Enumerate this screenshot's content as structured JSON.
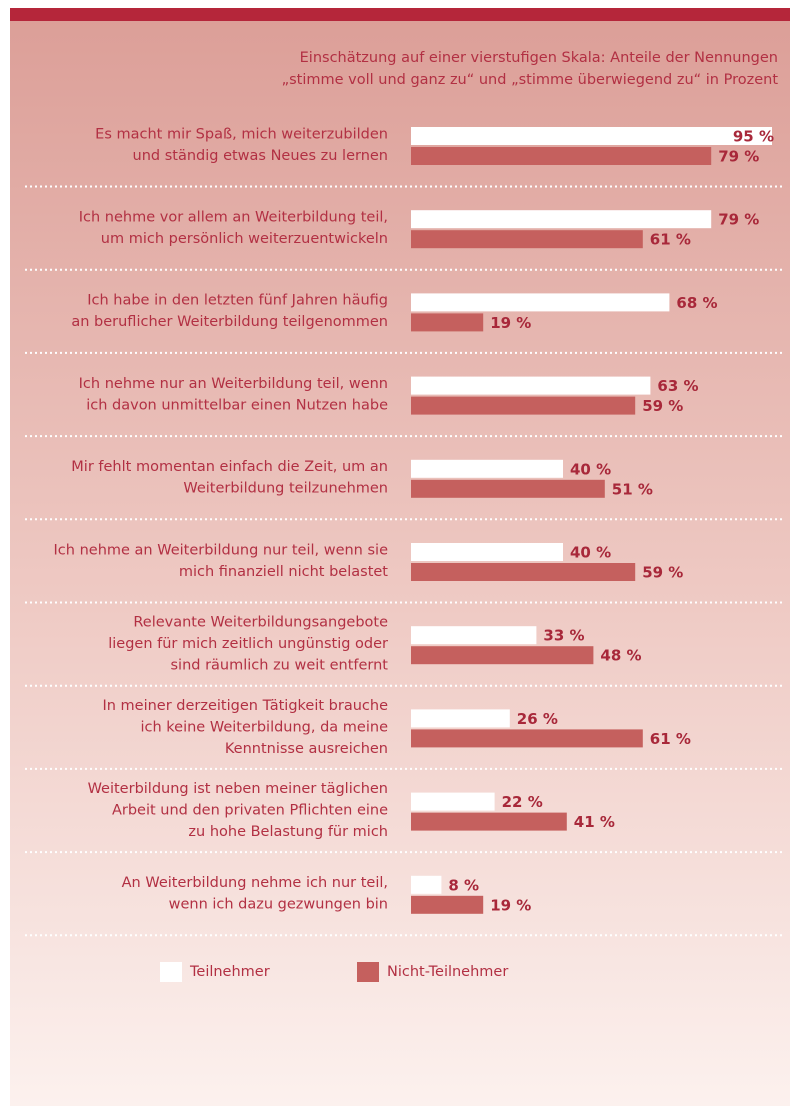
{
  "chart_data": {
    "type": "bar",
    "orientation": "horizontal",
    "subtitle": [
      "Einschätzung auf einer vierstufigen Skala: Anteile der Nennungen",
      "„stimme voll und ganz zu“ und „stimme überwiegend zu“ in Prozent"
    ],
    "categories": [
      [
        "Es macht mir Spaß, mich weiterzubilden",
        "und ständig etwas Neues zu lernen"
      ],
      [
        "Ich nehme vor allem an Weiterbildung teil,",
        "um mich persönlich weiterzuentwickeln"
      ],
      [
        "Ich habe in den letzten fünf Jahren häufig",
        "an beruflicher Weiterbildung teilgenommen"
      ],
      [
        "Ich nehme nur an Weiterbildung teil, wenn",
        "ich davon unmittelbar einen Nutzen habe"
      ],
      [
        "Mir fehlt momentan einfach die Zeit, um an",
        "Weiterbildung teilzunehmen"
      ],
      [
        "Ich nehme an Weiterbildung nur teil, wenn sie",
        "mich finanziell nicht belastet"
      ],
      [
        "Relevante Weiterbildungsangebote",
        "liegen für mich zeitlich ungünstig oder",
        "sind räumlich zu weit entfernt"
      ],
      [
        "In meiner derzeitigen Tätigkeit brauche",
        "ich keine Weiterbildung, da meine",
        "Kenntnisse ausreichen"
      ],
      [
        "Weiterbildung  ist neben meiner täglichen",
        "Arbeit und den privaten Pflichten eine",
        "zu hohe Belastung für mich"
      ],
      [
        "An Weiterbildung nehme ich nur teil,",
        "wenn ich dazu gezwungen bin"
      ]
    ],
    "series": [
      {
        "name": "Teilnehmer",
        "color": "#ffffff",
        "values": [
          95,
          79,
          68,
          63,
          40,
          40,
          33,
          26,
          22,
          8
        ],
        "value_labels": [
          "95 %",
          "79 %",
          "68 %",
          "63 %",
          "40 %",
          "40 %",
          "33 %",
          "26 %",
          "22 %",
          "8 %"
        ]
      },
      {
        "name": "Nicht-Teilnehmer",
        "color": "#c5605e",
        "values": [
          79,
          61,
          19,
          59,
          51,
          59,
          48,
          61,
          41,
          19
        ],
        "value_labels": [
          "79 %",
          "61 %",
          "19 %",
          "59 %",
          "51 %",
          "59 %",
          "48 %",
          "61 %",
          "41 %",
          "19 %"
        ]
      }
    ],
    "xlim": [
      0,
      100
    ]
  }
}
